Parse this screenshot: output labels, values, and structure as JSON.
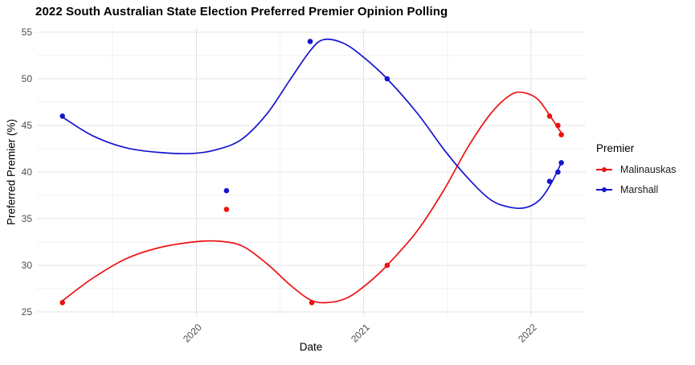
{
  "title": "2022 South Australian State Election Preferred Premier Opinion Polling",
  "legend": {
    "title": "Premier"
  },
  "colors": {
    "malinauskas": "#ED1111",
    "marshall": "#1515D0",
    "grid_major": "#E3E3E3",
    "grid_minor": "#F1F1F1",
    "tick_text": "#4d4d4d",
    "background": "#FFFFFF"
  },
  "chart_data": {
    "type": "line",
    "title": "2022 South Australian State Election Preferred Premier Opinion Polling",
    "xlabel": "Date",
    "ylabel": "Preferred Premier (%)",
    "xlim": [
      2019.048,
      2022.326
    ],
    "ylim": [
      24.57,
      55.43
    ],
    "x_major_ticks": [
      2020,
      2021,
      2022
    ],
    "x_minor_ticks": [
      2019.5,
      2020.5,
      2021.5
    ],
    "x_tick_labels": [
      "2020",
      "2021",
      "2022"
    ],
    "y_major_ticks": [
      25,
      30,
      35,
      40,
      45,
      50,
      55
    ],
    "y_minor_ticks": [
      27.5,
      32.5,
      37.5,
      42.5,
      47.5,
      52.5
    ],
    "grid": true,
    "legend_position": "right",
    "series": [
      {
        "name": "Malinauskas",
        "color": "#ED1111",
        "points": [
          [
            2019.2,
            26
          ],
          [
            2020.18,
            36
          ],
          [
            2020.69,
            26
          ],
          [
            2021.14,
            30
          ],
          [
            2022.11,
            46
          ],
          [
            2022.16,
            45
          ],
          [
            2022.18,
            44
          ]
        ],
        "smooth": [
          [
            2019.2,
            26.2
          ],
          [
            2019.38,
            28.6
          ],
          [
            2019.58,
            30.7
          ],
          [
            2019.78,
            31.9
          ],
          [
            2019.98,
            32.5
          ],
          [
            2020.12,
            32.6
          ],
          [
            2020.27,
            32.1
          ],
          [
            2020.42,
            30.2
          ],
          [
            2020.56,
            27.9
          ],
          [
            2020.68,
            26.3
          ],
          [
            2020.78,
            26.0
          ],
          [
            2020.9,
            26.5
          ],
          [
            2021.02,
            28.0
          ],
          [
            2021.14,
            30.0
          ],
          [
            2021.32,
            33.7
          ],
          [
            2021.48,
            38.1
          ],
          [
            2021.62,
            42.6
          ],
          [
            2021.76,
            46.3
          ],
          [
            2021.88,
            48.3
          ],
          [
            2021.96,
            48.5
          ],
          [
            2022.04,
            47.8
          ],
          [
            2022.11,
            46.1
          ],
          [
            2022.18,
            44.2
          ]
        ]
      },
      {
        "name": "Marshall",
        "color": "#1515D0",
        "points": [
          [
            2019.2,
            46
          ],
          [
            2020.18,
            38
          ],
          [
            2020.68,
            54
          ],
          [
            2021.14,
            50
          ],
          [
            2022.11,
            39
          ],
          [
            2022.16,
            40
          ],
          [
            2022.18,
            41
          ]
        ],
        "smooth": [
          [
            2019.2,
            45.9
          ],
          [
            2019.38,
            43.9
          ],
          [
            2019.58,
            42.6
          ],
          [
            2019.78,
            42.1
          ],
          [
            2019.98,
            42.0
          ],
          [
            2020.12,
            42.4
          ],
          [
            2020.27,
            43.5
          ],
          [
            2020.42,
            46.2
          ],
          [
            2020.56,
            49.9
          ],
          [
            2020.68,
            53.0
          ],
          [
            2020.76,
            54.2
          ],
          [
            2020.88,
            53.8
          ],
          [
            2021.0,
            52.3
          ],
          [
            2021.14,
            50.0
          ],
          [
            2021.32,
            46.3
          ],
          [
            2021.48,
            42.4
          ],
          [
            2021.62,
            39.4
          ],
          [
            2021.76,
            37.0
          ],
          [
            2021.88,
            36.2
          ],
          [
            2021.97,
            36.2
          ],
          [
            2022.05,
            37.0
          ],
          [
            2022.12,
            38.8
          ],
          [
            2022.18,
            41.0
          ]
        ]
      }
    ]
  }
}
